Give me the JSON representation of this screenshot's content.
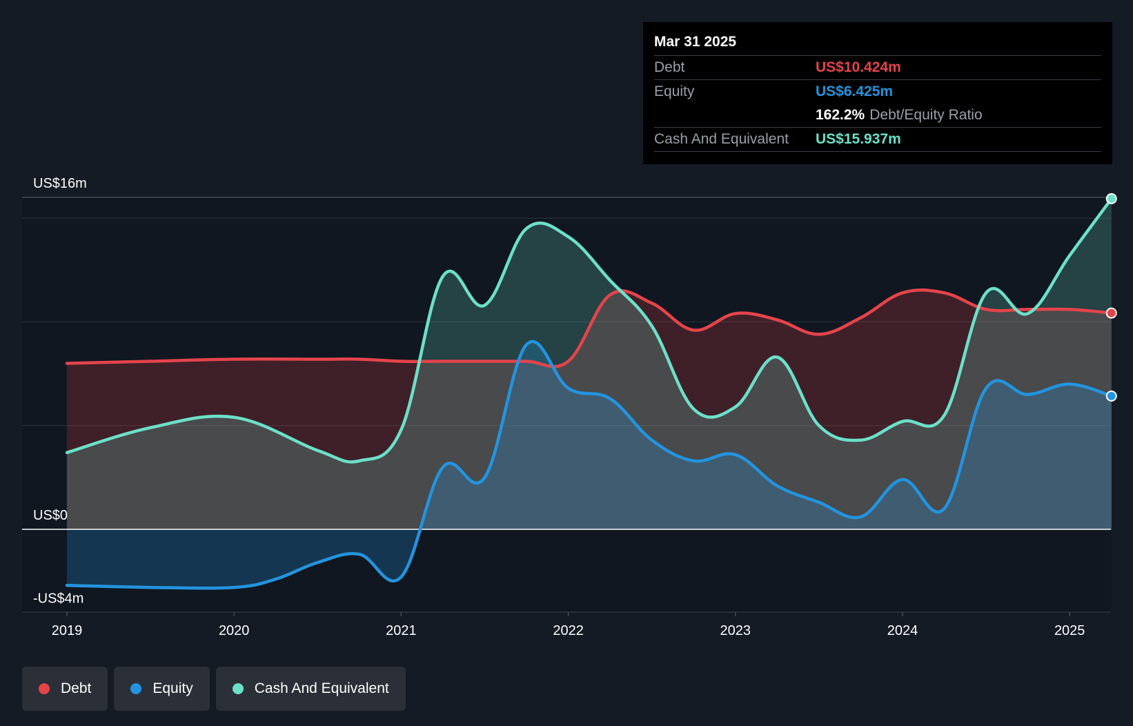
{
  "tooltip": {
    "date": "Mar 31 2025",
    "debt_label": "Debt",
    "debt_value": "US$10.424m",
    "equity_label": "Equity",
    "equity_value": "US$6.425m",
    "ratio_value": "162.2%",
    "ratio_label": "Debt/Equity Ratio",
    "cash_label": "Cash And Equivalent",
    "cash_value": "US$15.937m"
  },
  "legend": {
    "debt": "Debt",
    "equity": "Equity",
    "cash": "Cash And Equivalent"
  },
  "colors": {
    "debt": "#e5444b",
    "equity": "#2394df",
    "cash": "#6ce0c8",
    "background": "#151b24",
    "plot_background": "#111720"
  },
  "chart_data": {
    "type": "area",
    "x_unit": "year",
    "y_unit": "US$m",
    "xlim": [
      2019,
      2025.25
    ],
    "ylim": [
      -4,
      16
    ],
    "y_tick_labels": [
      {
        "value": 16,
        "label": "US$16m"
      },
      {
        "value": 0,
        "label": "US$0"
      },
      {
        "value": -4,
        "label": "-US$4m"
      }
    ],
    "gridlines": [
      15,
      10,
      5
    ],
    "x_ticks": [
      {
        "value": 2019,
        "label": "2019"
      },
      {
        "value": 2020,
        "label": "2020"
      },
      {
        "value": 2021,
        "label": "2021"
      },
      {
        "value": 2022,
        "label": "2022"
      },
      {
        "value": 2023,
        "label": "2023"
      },
      {
        "value": 2024,
        "label": "2024"
      },
      {
        "value": 2025,
        "label": "2025"
      }
    ],
    "series": [
      {
        "name": "Debt",
        "key": "debt",
        "points": [
          [
            2019.0,
            8.0
          ],
          [
            2019.5,
            8.1
          ],
          [
            2020.0,
            8.2
          ],
          [
            2020.5,
            8.2
          ],
          [
            2020.75,
            8.2
          ],
          [
            2021.0,
            8.1
          ],
          [
            2021.25,
            8.1
          ],
          [
            2021.5,
            8.1
          ],
          [
            2021.75,
            8.1
          ],
          [
            2022.0,
            8.1
          ],
          [
            2022.25,
            11.3
          ],
          [
            2022.5,
            10.9
          ],
          [
            2022.75,
            9.6
          ],
          [
            2023.0,
            10.4
          ],
          [
            2023.25,
            10.1
          ],
          [
            2023.5,
            9.4
          ],
          [
            2023.75,
            10.2
          ],
          [
            2024.0,
            11.4
          ],
          [
            2024.25,
            11.4
          ],
          [
            2024.5,
            10.6
          ],
          [
            2024.75,
            10.6
          ],
          [
            2025.0,
            10.6
          ],
          [
            2025.25,
            10.424
          ]
        ]
      },
      {
        "name": "Equity",
        "key": "equity",
        "points": [
          [
            2019.0,
            -2.7
          ],
          [
            2019.5,
            -2.8
          ],
          [
            2020.0,
            -2.8
          ],
          [
            2020.25,
            -2.4
          ],
          [
            2020.5,
            -1.6
          ],
          [
            2020.75,
            -1.2
          ],
          [
            2021.0,
            -2.3
          ],
          [
            2021.25,
            3.0
          ],
          [
            2021.5,
            2.5
          ],
          [
            2021.75,
            8.9
          ],
          [
            2022.0,
            6.8
          ],
          [
            2022.25,
            6.3
          ],
          [
            2022.5,
            4.3
          ],
          [
            2022.75,
            3.3
          ],
          [
            2023.0,
            3.6
          ],
          [
            2023.25,
            2.1
          ],
          [
            2023.5,
            1.3
          ],
          [
            2023.75,
            0.6
          ],
          [
            2024.0,
            2.4
          ],
          [
            2024.25,
            1.0
          ],
          [
            2024.5,
            6.8
          ],
          [
            2024.75,
            6.5
          ],
          [
            2025.0,
            7.0
          ],
          [
            2025.25,
            6.425
          ]
        ]
      },
      {
        "name": "Cash And Equivalent",
        "key": "cash",
        "points": [
          [
            2019.0,
            3.7
          ],
          [
            2019.5,
            4.9
          ],
          [
            2020.0,
            5.4
          ],
          [
            2020.5,
            3.8
          ],
          [
            2020.75,
            3.3
          ],
          [
            2021.0,
            4.8
          ],
          [
            2021.25,
            12.2
          ],
          [
            2021.5,
            10.8
          ],
          [
            2021.75,
            14.5
          ],
          [
            2022.0,
            14.1
          ],
          [
            2022.25,
            12.0
          ],
          [
            2022.5,
            9.8
          ],
          [
            2022.75,
            5.8
          ],
          [
            2023.0,
            5.9
          ],
          [
            2023.25,
            8.3
          ],
          [
            2023.5,
            5.0
          ],
          [
            2023.75,
            4.3
          ],
          [
            2024.0,
            5.2
          ],
          [
            2024.25,
            5.5
          ],
          [
            2024.5,
            11.4
          ],
          [
            2024.75,
            10.4
          ],
          [
            2025.0,
            13.2
          ],
          [
            2025.25,
            15.937
          ]
        ]
      }
    ],
    "legend_position": "bottom-left"
  }
}
